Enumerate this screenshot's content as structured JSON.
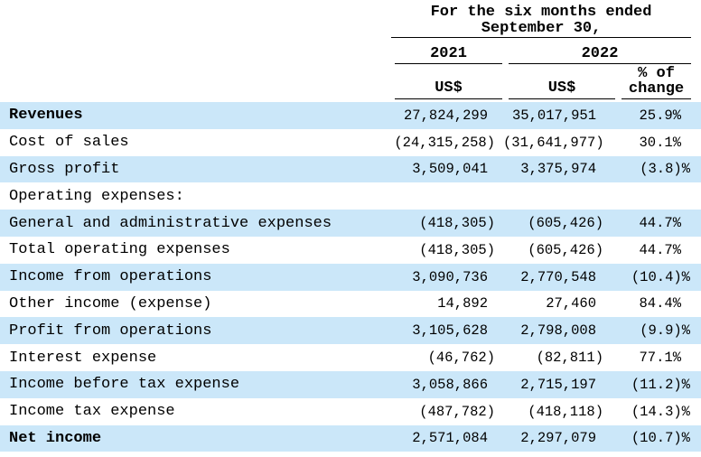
{
  "colors": {
    "stripe": "#cbe7f9",
    "text": "#000000",
    "rule": "#000000"
  },
  "header": {
    "period_line1": "For the six months ended",
    "period_line2": "September 30,",
    "col_2021": "2021",
    "col_2022": "2022",
    "us_2021": "US$",
    "us_2022": "US$",
    "pct_line1": "% of",
    "pct_line2": "change"
  },
  "rows": [
    {
      "label": "Revenues",
      "bold": true,
      "v2021": "27,824,299",
      "v2022": "35,017,951",
      "pct": "25.9%"
    },
    {
      "label": "Cost of sales",
      "v2021": "(24,315,258)",
      "v2022": "(31,641,977)",
      "pct": "30.1%"
    },
    {
      "label": "Gross profit",
      "v2021": "3,509,041",
      "v2022": "3,375,974",
      "pct": "(3.8)%"
    },
    {
      "label": "Operating expenses:",
      "v2021": "",
      "v2022": "",
      "pct": ""
    },
    {
      "label": "General and administrative expenses",
      "v2021": "(418,305)",
      "v2022": "(605,426)",
      "pct": "44.7%"
    },
    {
      "label": "Total operating expenses",
      "v2021": "(418,305)",
      "v2022": "(605,426)",
      "pct": "44.7%"
    },
    {
      "label": "Income from operations",
      "v2021": "3,090,736",
      "v2022": "2,770,548",
      "pct": "(10.4)%"
    },
    {
      "label": "Other income (expense)",
      "v2021": "14,892",
      "v2022": "27,460",
      "pct": "84.4%"
    },
    {
      "label": "Profit from operations",
      "v2021": "3,105,628",
      "v2022": "2,798,008",
      "pct": "(9.9)%"
    },
    {
      "label": "Interest expense",
      "v2021": "(46,762)",
      "v2022": "(82,811)",
      "pct": "77.1%"
    },
    {
      "label": "Income before tax expense",
      "v2021": "3,058,866",
      "v2022": "2,715,197",
      "pct": "(11.2)%"
    },
    {
      "label": "Income tax expense",
      "v2021": "(487,782)",
      "v2022": "(418,118)",
      "pct": "(14.3)%"
    },
    {
      "label": "Net income",
      "bold": true,
      "v2021": "2,571,084",
      "v2022": "2,297,079",
      "pct": "(10.7)%"
    }
  ]
}
